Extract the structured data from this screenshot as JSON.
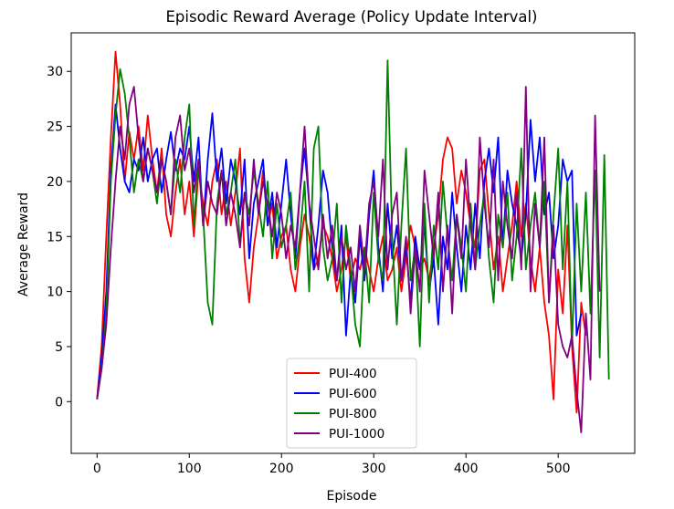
{
  "chart_data": {
    "type": "line",
    "title": "Episodic Reward Average (Policy Update Interval)",
    "xlabel": "Episode",
    "ylabel": "Average Reward",
    "xlim": [
      -28,
      583
    ],
    "ylim": [
      -4.7,
      33.5
    ],
    "xticks": [
      0,
      100,
      200,
      300,
      400,
      500
    ],
    "yticks": [
      0,
      5,
      10,
      15,
      20,
      25,
      30
    ],
    "grid": false,
    "legend_position": "lower-center",
    "series": [
      {
        "name": "PUI-400",
        "color": "#ff0000",
        "x": [
          0,
          5,
          10,
          15,
          20,
          25,
          30,
          35,
          40,
          45,
          50,
          55,
          60,
          65,
          70,
          75,
          80,
          85,
          90,
          95,
          100,
          105,
          110,
          115,
          120,
          125,
          130,
          135,
          140,
          145,
          150,
          155,
          160,
          165,
          170,
          175,
          180,
          185,
          190,
          195,
          200,
          205,
          210,
          215,
          220,
          225,
          230,
          235,
          240,
          245,
          250,
          255,
          260,
          265,
          270,
          275,
          280,
          285,
          290,
          295,
          300,
          305,
          310,
          315,
          320,
          325,
          330,
          335,
          340,
          345,
          350,
          355,
          360,
          365,
          370,
          375,
          380,
          385,
          390,
          395,
          400,
          405,
          410,
          415,
          420,
          425,
          430,
          435,
          440,
          445,
          450,
          455,
          460,
          465,
          470,
          475,
          480,
          485,
          490,
          495,
          500,
          505,
          510,
          515,
          520,
          525,
          530
        ],
        "y": [
          0.3,
          5,
          15,
          24,
          31.8,
          27,
          20,
          24.5,
          22,
          25,
          21,
          26,
          22,
          19,
          23,
          17,
          15,
          19,
          22,
          17,
          20,
          15,
          21,
          18,
          16,
          20,
          22,
          17,
          20,
          16,
          19,
          23,
          13,
          9,
          14,
          17,
          21,
          16,
          18,
          13,
          15,
          16,
          12,
          10,
          14,
          17,
          15,
          12,
          13,
          16,
          15,
          13,
          10,
          12,
          15,
          11,
          13,
          12,
          14,
          12,
          10,
          13,
          15,
          11,
          12,
          14,
          10,
          13,
          16,
          14,
          12,
          13,
          11,
          14,
          17,
          22,
          24,
          23,
          18,
          21,
          19,
          16,
          14,
          21,
          22,
          17,
          12,
          15,
          10,
          13,
          16,
          20,
          15,
          18,
          13,
          10,
          14,
          9,
          6,
          0.2,
          12,
          8,
          16,
          5,
          -1,
          9,
          6
        ]
      },
      {
        "name": "PUI-600",
        "color": "#0000ff",
        "x": [
          0,
          5,
          10,
          15,
          20,
          25,
          30,
          35,
          40,
          45,
          50,
          55,
          60,
          65,
          70,
          75,
          80,
          85,
          90,
          95,
          100,
          105,
          110,
          115,
          120,
          125,
          130,
          135,
          140,
          145,
          150,
          155,
          160,
          165,
          170,
          175,
          180,
          185,
          190,
          195,
          200,
          205,
          210,
          215,
          220,
          225,
          230,
          235,
          240,
          245,
          250,
          255,
          260,
          265,
          270,
          275,
          280,
          285,
          290,
          295,
          300,
          305,
          310,
          315,
          320,
          325,
          330,
          335,
          340,
          345,
          350,
          355,
          360,
          365,
          370,
          375,
          380,
          385,
          390,
          395,
          400,
          405,
          410,
          415,
          420,
          425,
          430,
          435,
          440,
          445,
          450,
          455,
          460,
          465,
          470,
          475,
          480,
          485,
          490,
          495,
          500,
          505,
          510,
          515,
          520,
          525
        ],
        "y": [
          0.2,
          4,
          10,
          21,
          27,
          23,
          20,
          19,
          22,
          21,
          24,
          20,
          22,
          23,
          19,
          22,
          24.5,
          21,
          23,
          22,
          25,
          20,
          24,
          16,
          22,
          26.2,
          20,
          23,
          18,
          22,
          20,
          17,
          22,
          13,
          18,
          20,
          22,
          16,
          19,
          14,
          18,
          22,
          17,
          13,
          19,
          23,
          18,
          12,
          16,
          21,
          19,
          14,
          11,
          16,
          6,
          12,
          9,
          15,
          11,
          17,
          21,
          14,
          10,
          18,
          13,
          16,
          11,
          14,
          9,
          15,
          12,
          16,
          10,
          13,
          7,
          15,
          12,
          19,
          14,
          10,
          16,
          12,
          18,
          13,
          20,
          23,
          19,
          24,
          14,
          21,
          18,
          16,
          13,
          17,
          25.6,
          20,
          24,
          17,
          19,
          13,
          16,
          22,
          20,
          21,
          6,
          8
        ]
      },
      {
        "name": "PUI-800",
        "color": "#008000",
        "x": [
          0,
          5,
          10,
          15,
          20,
          25,
          30,
          35,
          40,
          45,
          50,
          55,
          60,
          65,
          70,
          75,
          80,
          85,
          90,
          95,
          100,
          105,
          110,
          115,
          120,
          125,
          130,
          135,
          140,
          145,
          150,
          155,
          160,
          165,
          170,
          175,
          180,
          185,
          190,
          195,
          200,
          205,
          210,
          215,
          220,
          225,
          230,
          235,
          240,
          245,
          250,
          255,
          260,
          265,
          270,
          275,
          280,
          285,
          290,
          295,
          300,
          305,
          310,
          315,
          320,
          325,
          330,
          335,
          340,
          345,
          350,
          355,
          360,
          365,
          370,
          375,
          380,
          385,
          390,
          395,
          400,
          405,
          410,
          415,
          420,
          425,
          430,
          435,
          440,
          445,
          450,
          455,
          460,
          465,
          470,
          475,
          480,
          485,
          490,
          495,
          500,
          505,
          510,
          515,
          520,
          525,
          530,
          535,
          540,
          545,
          550,
          555
        ],
        "y": [
          0.2,
          3,
          8,
          20,
          26,
          30.2,
          28,
          24,
          19,
          22,
          20,
          23,
          21,
          18,
          22,
          20,
          17,
          22,
          19,
          24,
          27,
          16,
          22,
          17,
          9,
          7,
          18,
          21,
          17,
          19,
          22,
          14,
          19,
          17,
          21,
          18,
          15,
          20,
          13,
          18,
          14,
          16,
          19,
          12,
          15,
          20,
          10,
          23,
          25,
          14,
          11,
          13,
          18,
          9,
          16,
          12,
          7,
          5,
          14,
          9,
          19,
          13,
          11,
          31,
          15,
          7,
          16,
          23,
          11,
          14,
          5,
          18,
          9,
          16,
          12,
          20,
          15,
          11,
          17,
          14,
          10,
          18,
          12,
          16,
          19,
          13,
          9,
          17,
          14,
          19,
          11,
          15,
          23,
          12,
          16,
          19,
          14,
          20,
          9,
          17,
          23,
          12,
          20,
          5,
          18,
          10,
          19,
          8,
          21,
          4,
          22.4,
          2
        ]
      },
      {
        "name": "PUI-1000",
        "color": "#800080",
        "x": [
          0,
          5,
          10,
          15,
          20,
          25,
          30,
          35,
          40,
          45,
          50,
          55,
          60,
          65,
          70,
          75,
          80,
          85,
          90,
          95,
          100,
          105,
          110,
          115,
          120,
          125,
          130,
          135,
          140,
          145,
          150,
          155,
          160,
          165,
          170,
          175,
          180,
          185,
          190,
          195,
          200,
          205,
          210,
          215,
          220,
          225,
          230,
          235,
          240,
          245,
          250,
          255,
          260,
          265,
          270,
          275,
          280,
          285,
          290,
          295,
          300,
          305,
          310,
          315,
          320,
          325,
          330,
          335,
          340,
          345,
          350,
          355,
          360,
          365,
          370,
          375,
          380,
          385,
          390,
          395,
          400,
          405,
          410,
          415,
          420,
          425,
          430,
          435,
          440,
          445,
          450,
          455,
          460,
          465,
          470,
          475,
          480,
          485,
          490,
          495,
          500,
          505,
          510,
          515,
          520,
          525,
          530,
          535,
          540,
          545
        ],
        "y": [
          0.3,
          3,
          7,
          14,
          20,
          25,
          22,
          27,
          28.6,
          24,
          20,
          23,
          21,
          19,
          22,
          20,
          17,
          24,
          26,
          21,
          23,
          19,
          22,
          16,
          20,
          18,
          17,
          21,
          16,
          19,
          17,
          14,
          19,
          16,
          22,
          17,
          20,
          18,
          15,
          19,
          17,
          13,
          16,
          14,
          19,
          25,
          18,
          15,
          12,
          17,
          13,
          16,
          11,
          15,
          12,
          14,
          10,
          16,
          12,
          18,
          20,
          15,
          22,
          12,
          17,
          19,
          11,
          15,
          8,
          14,
          10,
          21,
          17,
          13,
          19,
          10,
          16,
          8,
          17,
          13,
          22,
          16,
          12,
          24,
          18,
          14,
          22,
          11,
          20,
          16,
          13,
          19,
          12,
          28.6,
          10,
          18,
          14,
          24,
          9,
          16,
          7,
          5,
          4,
          6,
          1,
          -2.8,
          8,
          2,
          26,
          10
        ]
      }
    ]
  }
}
